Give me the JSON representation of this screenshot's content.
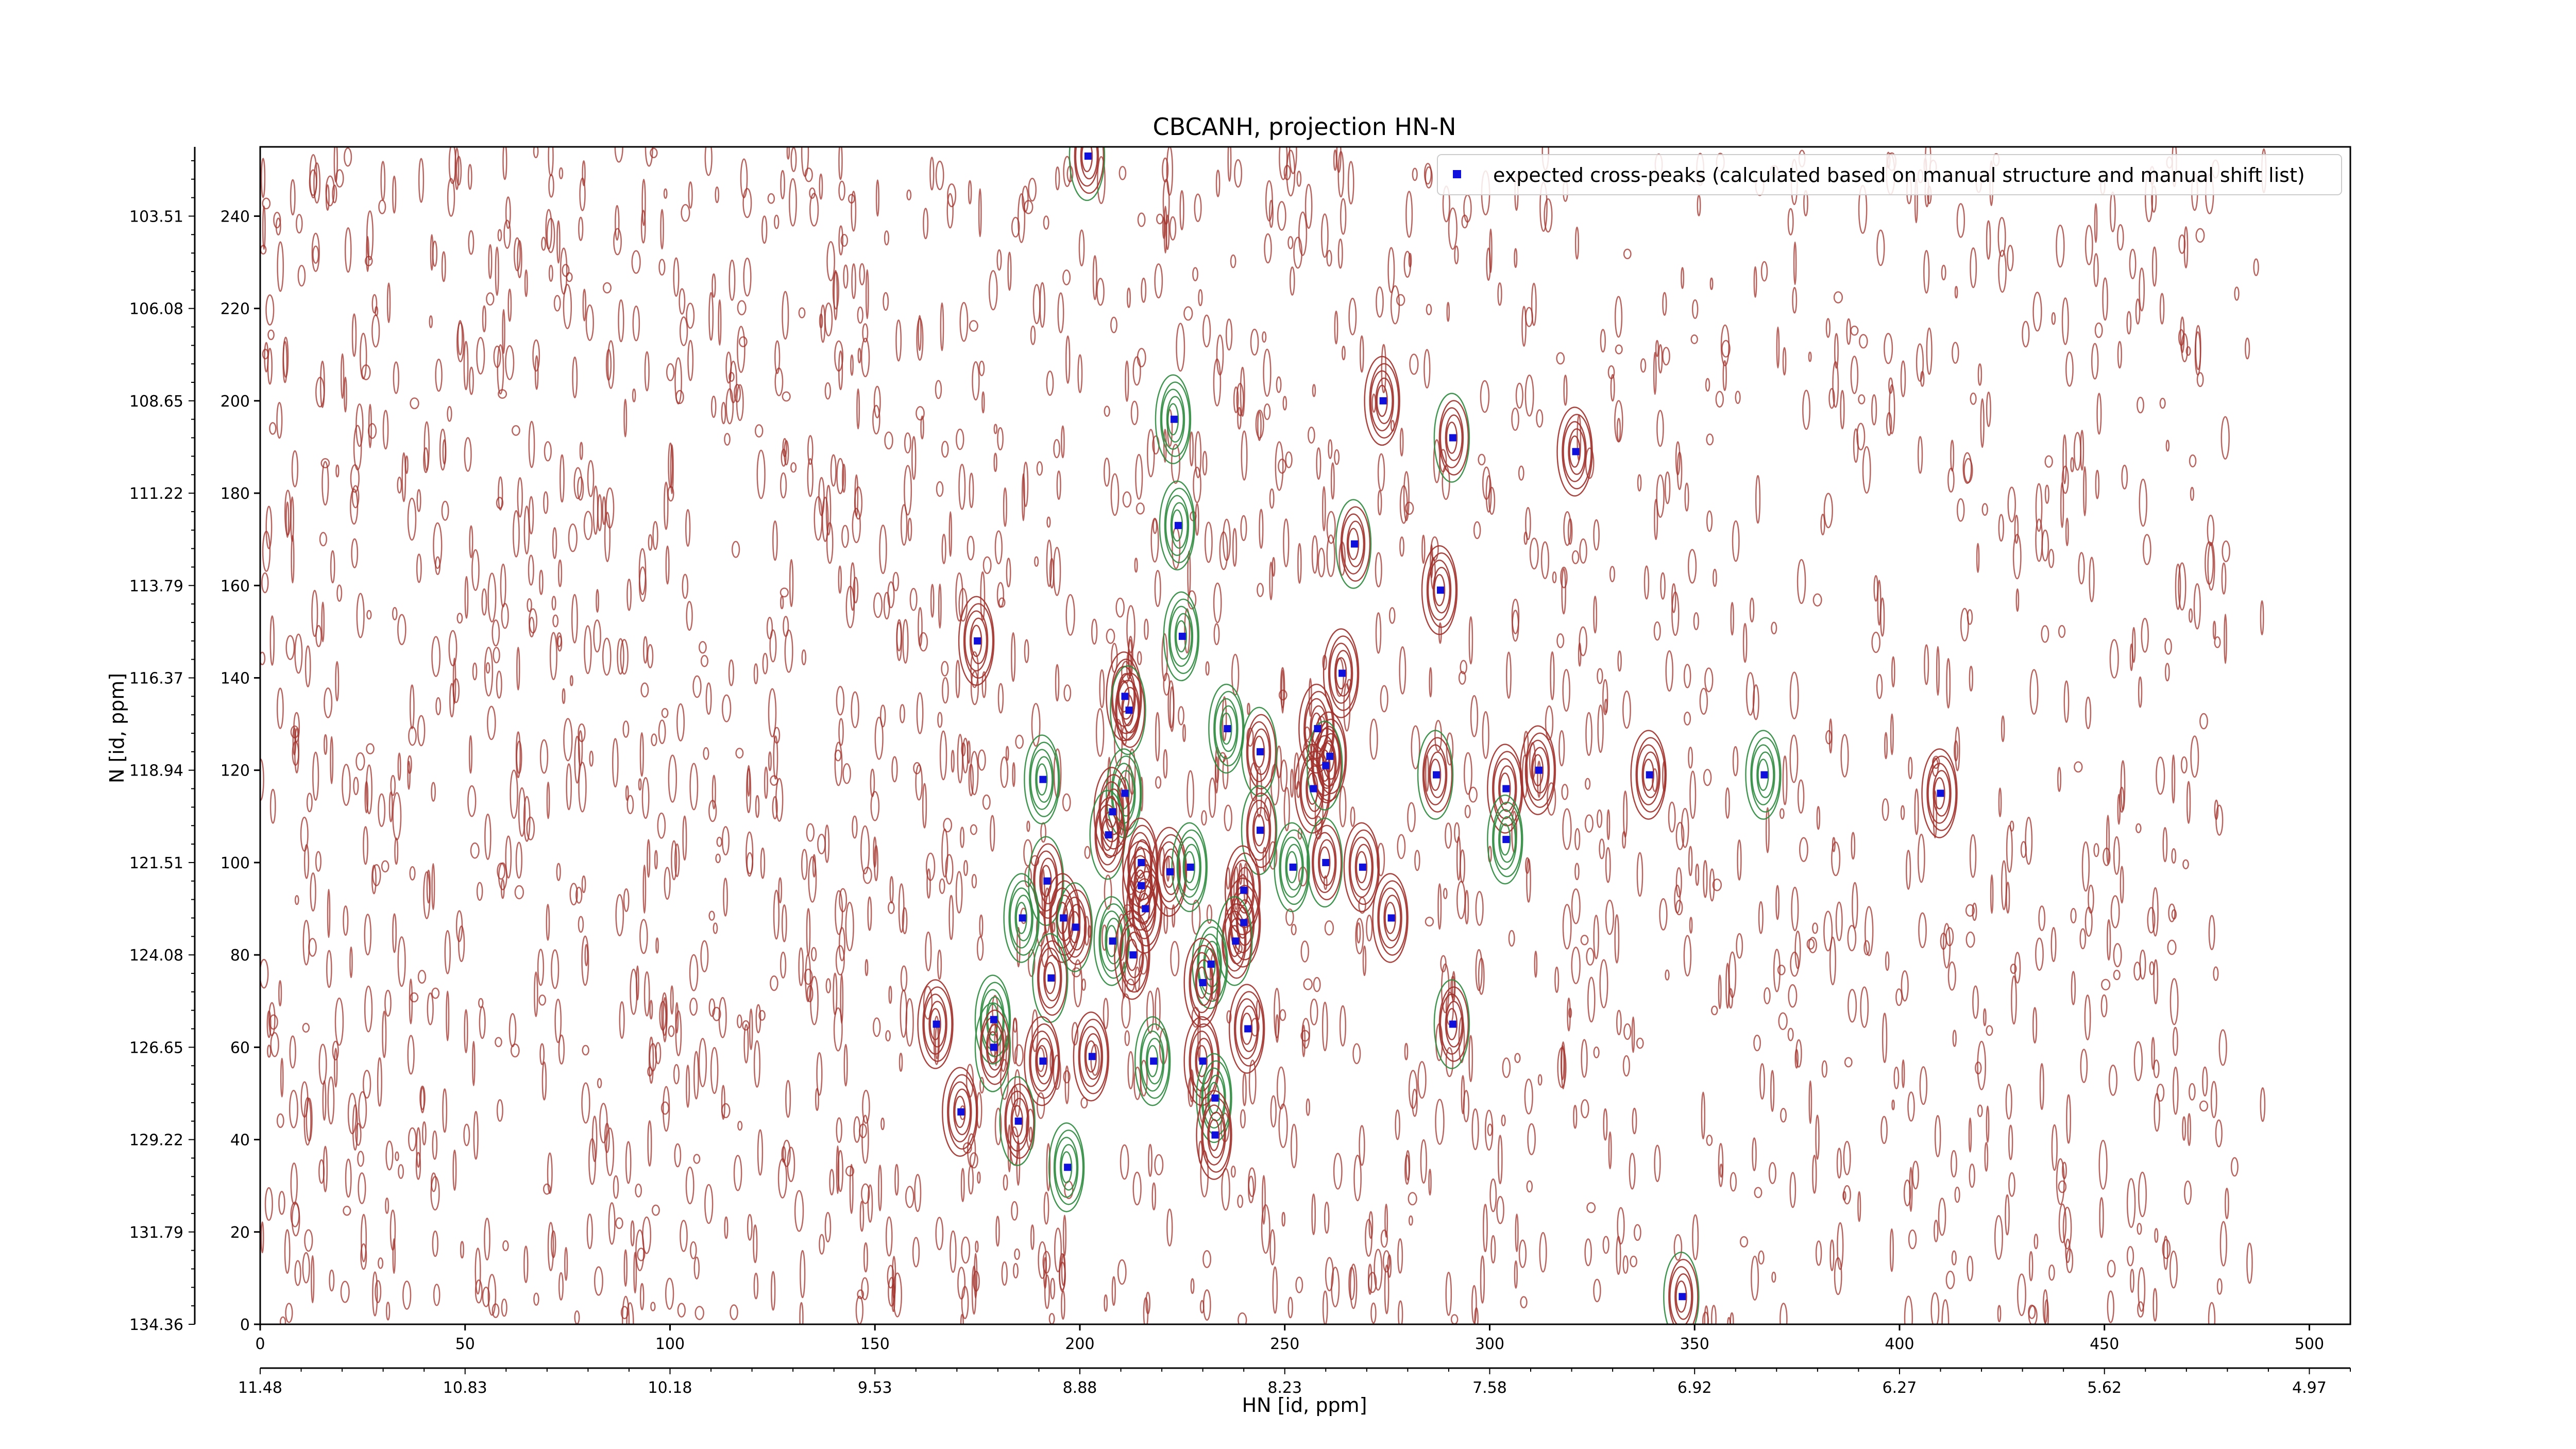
{
  "chart_data": {
    "type": "scatter",
    "title": "CBCANH, projection HN-N",
    "xlabel": "HN [id, ppm]",
    "ylabel": "N [id, ppm]",
    "xlim": [
      0,
      510
    ],
    "ylim": [
      0,
      255
    ],
    "x_ticks_index": [
      0,
      50,
      100,
      150,
      200,
      250,
      300,
      350,
      400,
      450,
      500
    ],
    "x_ticks_ppm": [
      {
        "pos": 0,
        "label": "11.48"
      },
      {
        "pos": 50,
        "label": "10.83"
      },
      {
        "pos": 100,
        "label": "10.18"
      },
      {
        "pos": 150,
        "label": "9.53"
      },
      {
        "pos": 200,
        "label": "8.88"
      },
      {
        "pos": 250,
        "label": "8.23"
      },
      {
        "pos": 300,
        "label": "7.58"
      },
      {
        "pos": 350,
        "label": "6.92"
      },
      {
        "pos": 400,
        "label": "6.27"
      },
      {
        "pos": 450,
        "label": "5.62"
      },
      {
        "pos": 500,
        "label": "4.97"
      }
    ],
    "y_ticks_index": [
      0,
      20,
      40,
      60,
      80,
      100,
      120,
      140,
      160,
      180,
      200,
      220,
      240
    ],
    "y_ticks_ppm": [
      {
        "pos": 0,
        "label": "134.36"
      },
      {
        "pos": 20,
        "label": "131.79"
      },
      {
        "pos": 40,
        "label": "129.22"
      },
      {
        "pos": 60,
        "label": "126.65"
      },
      {
        "pos": 80,
        "label": "124.08"
      },
      {
        "pos": 100,
        "label": "121.51"
      },
      {
        "pos": 120,
        "label": "118.94"
      },
      {
        "pos": 140,
        "label": "116.37"
      },
      {
        "pos": 160,
        "label": "113.79"
      },
      {
        "pos": 180,
        "label": "111.22"
      },
      {
        "pos": 200,
        "label": "108.65"
      },
      {
        "pos": 220,
        "label": "106.08"
      },
      {
        "pos": 240,
        "label": "103.51"
      }
    ],
    "legend": {
      "label": "expected cross-peaks (calculated based on manual structure and manual shift list)",
      "position": "upper right",
      "marker_color": "#1010dd"
    },
    "colors": {
      "positive_contours": "#a0302a",
      "negative_contours": "#2e8b3f",
      "markers": "#1010dd"
    },
    "series": [
      {
        "name": "expected cross-peaks (calculated based on manual structure and manual shift list)",
        "points": [
          {
            "x": 202,
            "y": 253
          },
          {
            "x": 223,
            "y": 196
          },
          {
            "x": 274,
            "y": 200
          },
          {
            "x": 291,
            "y": 192
          },
          {
            "x": 321,
            "y": 189
          },
          {
            "x": 224,
            "y": 173
          },
          {
            "x": 267,
            "y": 169
          },
          {
            "x": 288,
            "y": 159
          },
          {
            "x": 175,
            "y": 148
          },
          {
            "x": 225,
            "y": 149
          },
          {
            "x": 264,
            "y": 141
          },
          {
            "x": 211,
            "y": 136
          },
          {
            "x": 212,
            "y": 133
          },
          {
            "x": 236,
            "y": 129
          },
          {
            "x": 258,
            "y": 129
          },
          {
            "x": 244,
            "y": 124
          },
          {
            "x": 261,
            "y": 123
          },
          {
            "x": 191,
            "y": 118
          },
          {
            "x": 287,
            "y": 119
          },
          {
            "x": 312,
            "y": 120
          },
          {
            "x": 339,
            "y": 119
          },
          {
            "x": 367,
            "y": 119
          },
          {
            "x": 410,
            "y": 115
          },
          {
            "x": 257,
            "y": 116
          },
          {
            "x": 260,
            "y": 121
          },
          {
            "x": 211,
            "y": 115
          },
          {
            "x": 208,
            "y": 111
          },
          {
            "x": 207,
            "y": 106
          },
          {
            "x": 304,
            "y": 116
          },
          {
            "x": 304,
            "y": 105
          },
          {
            "x": 244,
            "y": 107
          },
          {
            "x": 215,
            "y": 100
          },
          {
            "x": 222,
            "y": 98
          },
          {
            "x": 227,
            "y": 99
          },
          {
            "x": 215,
            "y": 95
          },
          {
            "x": 216,
            "y": 90
          },
          {
            "x": 192,
            "y": 96
          },
          {
            "x": 186,
            "y": 88
          },
          {
            "x": 196,
            "y": 88
          },
          {
            "x": 199,
            "y": 86
          },
          {
            "x": 240,
            "y": 94
          },
          {
            "x": 252,
            "y": 99
          },
          {
            "x": 260,
            "y": 100
          },
          {
            "x": 269,
            "y": 99
          },
          {
            "x": 276,
            "y": 88
          },
          {
            "x": 208,
            "y": 83
          },
          {
            "x": 213,
            "y": 80
          },
          {
            "x": 240,
            "y": 87
          },
          {
            "x": 238,
            "y": 83
          },
          {
            "x": 232,
            "y": 78
          },
          {
            "x": 230,
            "y": 74
          },
          {
            "x": 193,
            "y": 75
          },
          {
            "x": 165,
            "y": 65
          },
          {
            "x": 179,
            "y": 66
          },
          {
            "x": 179,
            "y": 60
          },
          {
            "x": 191,
            "y": 57
          },
          {
            "x": 203,
            "y": 58
          },
          {
            "x": 218,
            "y": 57
          },
          {
            "x": 230,
            "y": 57
          },
          {
            "x": 241,
            "y": 64
          },
          {
            "x": 291,
            "y": 65
          },
          {
            "x": 233,
            "y": 49
          },
          {
            "x": 171,
            "y": 46
          },
          {
            "x": 185,
            "y": 44
          },
          {
            "x": 233,
            "y": 41
          },
          {
            "x": 197,
            "y": 34
          },
          {
            "x": 347,
            "y": 6
          }
        ]
      }
    ],
    "grid": false
  }
}
